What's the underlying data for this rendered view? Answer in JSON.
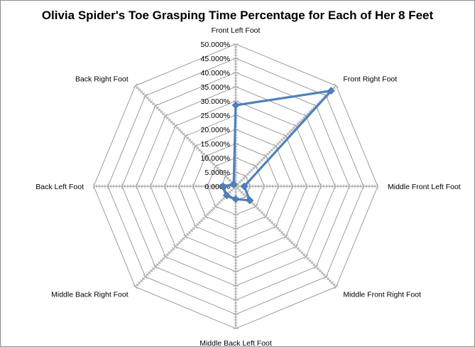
{
  "chart_data": {
    "type": "radar",
    "title": "Olivia Spider's Toe Grasping Time Percentage for Each of Her 8 Feet",
    "categories": [
      "Front Left Foot",
      "Front Right Foot",
      "Middle Front Left Foot",
      "Middle Front Right Foot",
      "Middle Back Left Foot",
      "Middle Back Right Foot",
      "Back Left Foot",
      "Back Right Foot"
    ],
    "values": [
      28.5,
      47.5,
      3.0,
      7.0,
      4.5,
      4.5,
      4.5,
      1.0
    ],
    "axis_ticks": [
      "0.000%",
      "5.000%",
      "10.000%",
      "15.000%",
      "20.000%",
      "25.000%",
      "30.000%",
      "35.000%",
      "40.000%",
      "45.000%",
      "50.000%"
    ],
    "rmax": 50,
    "rstep": 5,
    "grid": true,
    "legend": "none",
    "colors": {
      "line": "#4f81bd",
      "grid": "#868686",
      "axis": "#a6a6a6"
    }
  }
}
